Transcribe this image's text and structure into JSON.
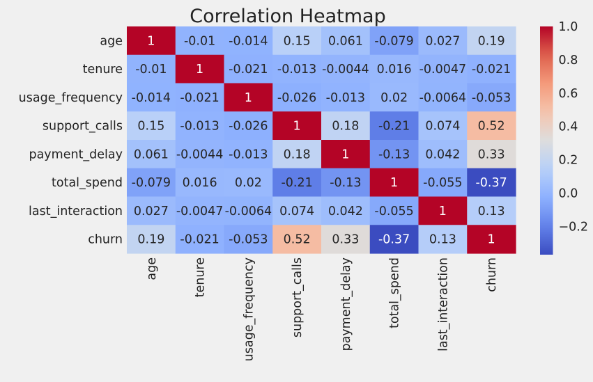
{
  "chart_data": {
    "type": "heatmap",
    "title": "Correlation Heatmap",
    "variables": [
      "age",
      "tenure",
      "usage_frequency",
      "support_calls",
      "payment_delay",
      "total_spend",
      "last_interaction",
      "churn"
    ],
    "values": [
      [
        1,
        -0.01,
        -0.014,
        0.15,
        0.061,
        -0.079,
        0.027,
        0.19
      ],
      [
        -0.01,
        1,
        -0.021,
        -0.013,
        -0.0044,
        0.016,
        -0.0047,
        -0.021
      ],
      [
        -0.014,
        -0.021,
        1,
        -0.026,
        -0.013,
        0.02,
        -0.0064,
        -0.053
      ],
      [
        0.15,
        -0.013,
        -0.026,
        1,
        0.18,
        -0.21,
        0.074,
        0.52
      ],
      [
        0.061,
        -0.0044,
        -0.013,
        0.18,
        1,
        -0.13,
        0.042,
        0.33
      ],
      [
        -0.079,
        0.016,
        0.02,
        -0.21,
        -0.13,
        1,
        -0.055,
        -0.37
      ],
      [
        0.027,
        -0.0047,
        -0.0064,
        0.074,
        0.042,
        -0.055,
        1,
        0.13
      ],
      [
        0.19,
        -0.021,
        -0.053,
        0.52,
        0.33,
        -0.37,
        0.13,
        1
      ]
    ],
    "value_labels": [
      [
        "1",
        "-0.01",
        "-0.014",
        "0.15",
        "0.061",
        "-0.079",
        "0.027",
        "0.19"
      ],
      [
        "-0.01",
        "1",
        "-0.021",
        "-0.013",
        "-0.0044",
        "0.016",
        "-0.0047",
        "-0.021"
      ],
      [
        "-0.014",
        "-0.021",
        "1",
        "-0.026",
        "-0.013",
        "0.02",
        "-0.0064",
        "-0.053"
      ],
      [
        "0.15",
        "-0.013",
        "-0.026",
        "1",
        "0.18",
        "-0.21",
        "0.074",
        "0.52"
      ],
      [
        "0.061",
        "-0.0044",
        "-0.013",
        "0.18",
        "1",
        "-0.13",
        "0.042",
        "0.33"
      ],
      [
        "-0.079",
        "0.016",
        "0.02",
        "-0.21",
        "-0.13",
        "1",
        "-0.055",
        "-0.37"
      ],
      [
        "0.027",
        "-0.0047",
        "-0.0064",
        "0.074",
        "0.042",
        "-0.055",
        "1",
        "0.13"
      ],
      [
        "0.19",
        "-0.021",
        "-0.053",
        "0.52",
        "0.33",
        "-0.37",
        "0.13",
        "1"
      ]
    ],
    "colormap": "coolwarm",
    "color_range": [
      -0.37,
      1.0
    ],
    "colorbar_ticks": [
      {
        "value": 1.0,
        "label": "1.0"
      },
      {
        "value": 0.8,
        "label": "0.8"
      },
      {
        "value": 0.6,
        "label": "0.6"
      },
      {
        "value": 0.4,
        "label": "0.4"
      },
      {
        "value": 0.2,
        "label": "0.2"
      },
      {
        "value": 0.0,
        "label": "0.0"
      },
      {
        "value": -0.2,
        "label": "−0.2"
      }
    ],
    "colorbar_position": "right",
    "background_color": "#f0f0f0",
    "grid": false
  }
}
